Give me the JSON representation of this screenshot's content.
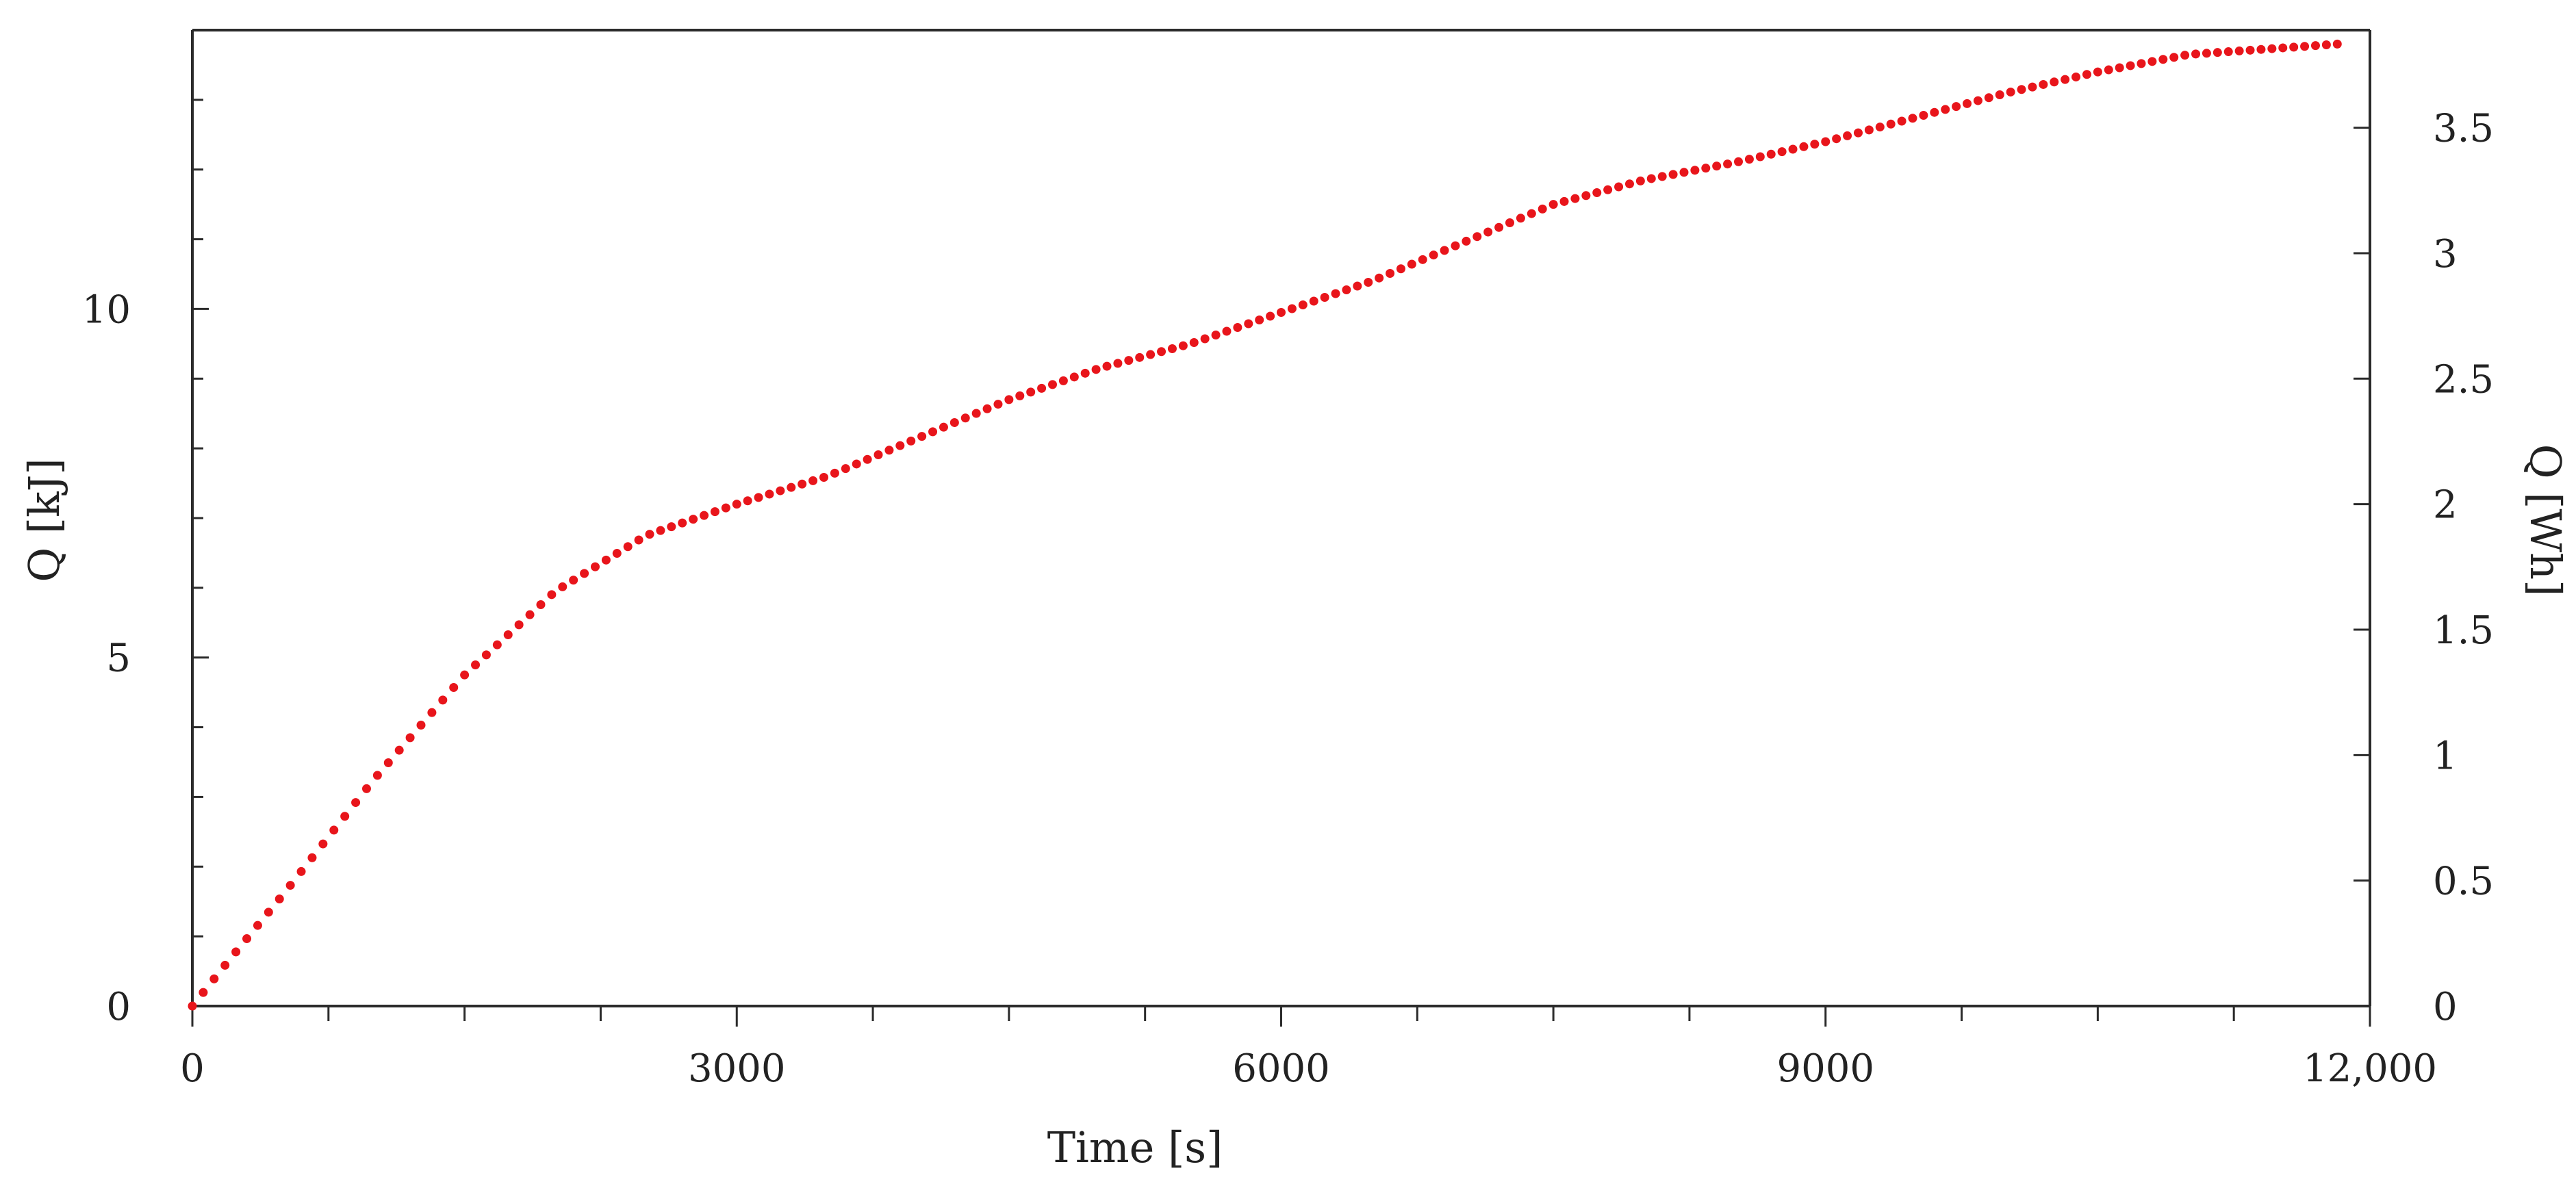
{
  "chart_data": {
    "type": "scatter",
    "title": "",
    "xlabel": "Time [s]",
    "ylabel": "Q [kJ]",
    "y2label": "Q [Wh]",
    "xlim": [
      0,
      12000
    ],
    "ylim": [
      0,
      14
    ],
    "y2lim": [
      0,
      3.8889
    ],
    "grid": false,
    "x_ticks": [
      {
        "value": 0,
        "label": "0"
      },
      {
        "value": 3000,
        "label": "3000"
      },
      {
        "value": 6000,
        "label": "6000"
      },
      {
        "value": 9000,
        "label": "9000"
      },
      {
        "value": 12000,
        "label": "12,000"
      }
    ],
    "x_minor_step": 750,
    "y_ticks": [
      {
        "value": 0,
        "label": "0"
      },
      {
        "value": 5,
        "label": "5"
      },
      {
        "value": 10,
        "label": "10"
      }
    ],
    "y_minor_step": 1,
    "y2_ticks": [
      {
        "value": 0,
        "label": "0"
      },
      {
        "value": 0.5,
        "label": "0.5"
      },
      {
        "value": 1,
        "label": "1"
      },
      {
        "value": 1.5,
        "label": "1.5"
      },
      {
        "value": 2,
        "label": "2"
      },
      {
        "value": 2.5,
        "label": "2.5"
      },
      {
        "value": 3,
        "label": "3"
      },
      {
        "value": 3.5,
        "label": "3.5"
      }
    ],
    "marker_color": "#e8151b",
    "series": [
      {
        "x_step": 60,
        "x_end": 11820,
        "curve_knots": [
          [
            0,
            0
          ],
          [
            200,
            0.65
          ],
          [
            500,
            1.6
          ],
          [
            1000,
            3.25
          ],
          [
            1500,
            4.75
          ],
          [
            2000,
            5.95
          ],
          [
            2500,
            6.75
          ],
          [
            3000,
            7.2
          ],
          [
            3500,
            7.6
          ],
          [
            4000,
            8.15
          ],
          [
            4500,
            8.7
          ],
          [
            5000,
            9.15
          ],
          [
            5500,
            9.5
          ],
          [
            6000,
            9.95
          ],
          [
            6500,
            10.4
          ],
          [
            7000,
            10.95
          ],
          [
            7500,
            11.5
          ],
          [
            8000,
            11.85
          ],
          [
            8500,
            12.1
          ],
          [
            9000,
            12.4
          ],
          [
            9500,
            12.75
          ],
          [
            10000,
            13.1
          ],
          [
            10500,
            13.4
          ],
          [
            11000,
            13.65
          ],
          [
            11820,
            13.8
          ]
        ]
      }
    ]
  }
}
